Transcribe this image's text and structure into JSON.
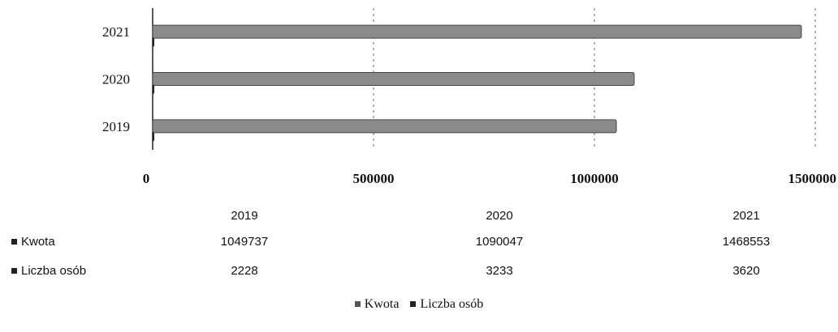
{
  "chart_data": {
    "type": "bar",
    "orientation": "horizontal",
    "categories": [
      "2019",
      "2020",
      "2021"
    ],
    "series": [
      {
        "name": "Kwota",
        "values": [
          1049737,
          1090047,
          1468553
        ]
      },
      {
        "name": "Liczba osób",
        "values": [
          2228,
          3233,
          3620
        ]
      }
    ],
    "x_ticks": [
      "0",
      "500000",
      "1000000",
      "1500000"
    ],
    "xlim": [
      0,
      1500000
    ],
    "grid": "vertical-dashed",
    "legend_position": "bottom",
    "data_table": {
      "headers": [
        "2019",
        "2020",
        "2021"
      ],
      "rows": [
        {
          "label": "Kwota",
          "values": [
            "1049737",
            "1090047",
            "1468553"
          ]
        },
        {
          "label": "Liczba osób",
          "values": [
            "2228",
            "3233",
            "3620"
          ]
        }
      ]
    },
    "colors": {
      "kwota": "#8a8a8a",
      "liczba": "#222222",
      "grid": "#666666"
    }
  }
}
